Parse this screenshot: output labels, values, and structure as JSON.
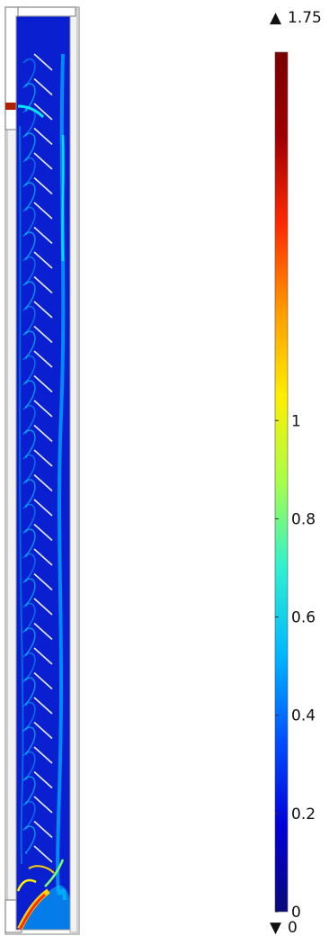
{
  "figure": {
    "type": "surface-plot",
    "colormap": "rainbow"
  },
  "colorbar": {
    "max_label": "1.75",
    "min_label": "0",
    "range": [
      0,
      1.75
    ],
    "ticks": [
      "0",
      "0.2",
      "0.4",
      "0.6",
      "0.8",
      "1"
    ],
    "tick_values": [
      0,
      0.2,
      0.4,
      0.6,
      0.8,
      1.0
    ],
    "stops": [
      "#0a0a7a",
      "#0000d8",
      "#0050ff",
      "#00b8ff",
      "#2ff0d0",
      "#a8ff4a",
      "#ffee00",
      "#ff9a00",
      "#ff2a00",
      "#a00000",
      "#7a0000"
    ]
  },
  "field": {
    "background_color": "#0a1fd0",
    "highlight_colors": [
      "#00b0ff",
      "#00e8ff",
      "#7dff6a",
      "#ffd000",
      "#ff2a00"
    ]
  }
}
